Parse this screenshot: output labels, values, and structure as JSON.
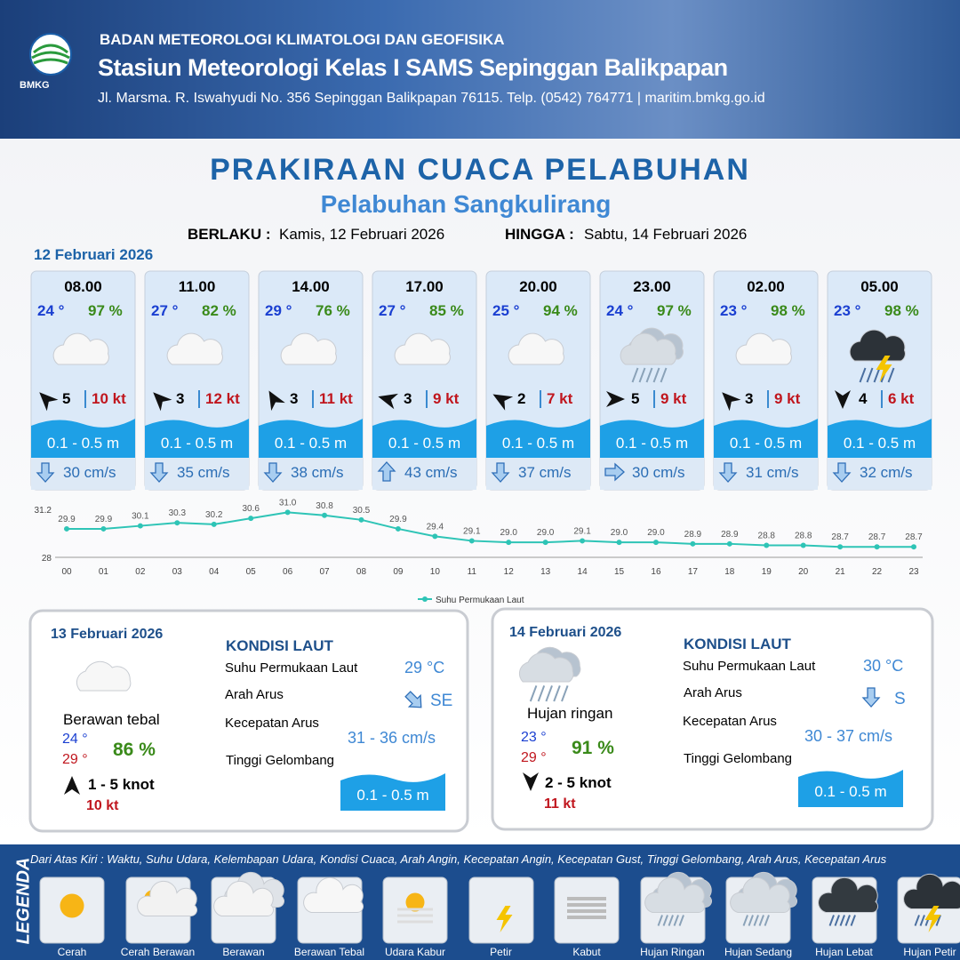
{
  "header": {
    "org": "BADAN METEOROLOGI KLIMATOLOGI DAN GEOFISIKA",
    "station": "Stasiun Meteorologi Kelas I SAMS Sepinggan Balikpapan",
    "address": "Jl. Marsma. R. Iswahyudi No. 356 Sepinggan Balikpapan 76115. Telp. (0542) 764771 | maritim.bmkg.go.id",
    "logo": "BMKG"
  },
  "title": "PRAKIRAAN CUACA PELABUHAN",
  "subtitle": "Pelabuhan Sangkulirang",
  "validity": {
    "from_label": "BERLAKU :",
    "from": "Kamis, 12 Februari 2026",
    "to_label": "HINGGA :",
    "to": "Sabtu, 14 Februari 2026"
  },
  "day1": {
    "date": "12 Februari 2026",
    "forecasts": [
      {
        "time": "08.00",
        "temp": "24 °",
        "humidity": "97 %",
        "condition": 3,
        "wind_dir_deg": 315,
        "wind": "5",
        "gust": "10 kt",
        "wave": "0.1 - 0.5 m",
        "current_dir_deg": 180,
        "current": "30 cm/s"
      },
      {
        "time": "11.00",
        "temp": "27 °",
        "humidity": "82 %",
        "condition": 3,
        "wind_dir_deg": 315,
        "wind": "3",
        "gust": "12 kt",
        "wave": "0.1 - 0.5 m",
        "current_dir_deg": 180,
        "current": "35 cm/s"
      },
      {
        "time": "14.00",
        "temp": "29 °",
        "humidity": "76 %",
        "condition": 3,
        "wind_dir_deg": 330,
        "wind": "3",
        "gust": "11 kt",
        "wave": "0.1 - 0.5 m",
        "current_dir_deg": 180,
        "current": "38 cm/s"
      },
      {
        "time": "17.00",
        "temp": "27 °",
        "humidity": "85 %",
        "condition": 3,
        "wind_dir_deg": 285,
        "wind": "3",
        "gust": "9 kt",
        "wave": "0.1 - 0.5 m",
        "current_dir_deg": 0,
        "current": "43 cm/s"
      },
      {
        "time": "20.00",
        "temp": "25 °",
        "humidity": "94 %",
        "condition": 3,
        "wind_dir_deg": 300,
        "wind": "2",
        "gust": "7 kt",
        "wave": "0.1 - 0.5 m",
        "current_dir_deg": 180,
        "current": "37 cm/s"
      },
      {
        "time": "23.00",
        "temp": "24 °",
        "humidity": "97 %",
        "condition": 7,
        "wind_dir_deg": 90,
        "wind": "5",
        "gust": "9 kt",
        "wave": "0.1 - 0.5 m",
        "current_dir_deg": 90,
        "current": "30 cm/s"
      },
      {
        "time": "02.00",
        "temp": "23 °",
        "humidity": "98 %",
        "condition": 3,
        "wind_dir_deg": 315,
        "wind": "3",
        "gust": "9 kt",
        "wave": "0.1 - 0.5 m",
        "current_dir_deg": 180,
        "current": "31 cm/s"
      },
      {
        "time": "05.00",
        "temp": "23 °",
        "humidity": "98 %",
        "condition": 10,
        "wind_dir_deg": 180,
        "wind": "4",
        "gust": "6 kt",
        "wave": "0.1 - 0.5 m",
        "current_dir_deg": 180,
        "current": "32 cm/s"
      }
    ]
  },
  "chart_data": {
    "type": "line",
    "categories": [
      "00",
      "01",
      "02",
      "03",
      "04",
      "05",
      "06",
      "07",
      "08",
      "09",
      "10",
      "11",
      "12",
      "13",
      "14",
      "15",
      "16",
      "17",
      "18",
      "19",
      "20",
      "21",
      "22",
      "23"
    ],
    "series": [
      {
        "name": "Suhu Permukaan Laut",
        "color": "#2ec4b6",
        "values": [
          29.9,
          29.9,
          30.1,
          30.3,
          30.2,
          30.6,
          31.0,
          30.8,
          30.5,
          29.9,
          29.4,
          29.1,
          29.0,
          29.0,
          29.1,
          29.0,
          29.0,
          28.9,
          28.9,
          28.8,
          28.8,
          28.7,
          28.7,
          28.7
        ],
        "value_labels": [
          "29.9",
          "29.9",
          "30.1",
          "30.3",
          "30.2",
          "30.6",
          "31.0",
          "30.8",
          "30.5",
          "29.9",
          "29.4",
          "29.1",
          "29.0",
          "29.0",
          "29.1",
          "29.0",
          "29.0",
          "28.9",
          "28.9",
          "28.8",
          "28.8",
          "28.7",
          "28.7",
          "28.7"
        ]
      }
    ],
    "ylim": [
      28,
      31.2
    ],
    "yticks": [
      28,
      31.2
    ],
    "legend": "bottom"
  },
  "days": [
    {
      "date": "13 Februari 2026",
      "condition": 3,
      "condition_text": "Berawan tebal",
      "temp_min": "24 °",
      "temp_max": "29 °",
      "humidity": "86 %",
      "wind_dir_deg": 0,
      "wind": "1  - 5 knot",
      "gust": "10 kt",
      "sea_title": "KONDISI LAUT",
      "sst_label": "Suhu Permukaan Laut",
      "sst": "29 °C",
      "dir_label": "Arah Arus",
      "current_dir_deg": 135,
      "current_dir": "SE",
      "speed_label": "Kecepatan Arus",
      "speed": "31  - 36 cm/s",
      "wave_label": "Tinggi Gelombang",
      "wave": "0.1 - 0.5 m"
    },
    {
      "date": "14 Februari 2026",
      "condition": 7,
      "condition_text": "Hujan ringan",
      "temp_min": "23 °",
      "temp_max": "29 °",
      "humidity": "91 %",
      "wind_dir_deg": 180,
      "wind": "2  - 5 knot",
      "gust": "11 kt",
      "sea_title": "KONDISI LAUT",
      "sst_label": "Suhu Permukaan Laut",
      "sst": "30 °C",
      "dir_label": "Arah Arus",
      "current_dir_deg": 180,
      "current_dir": "S",
      "speed_label": "Kecepatan Arus",
      "speed": "30  - 37 cm/s",
      "wave_label": "Tinggi Gelombang",
      "wave": "0.1 - 0.5 m"
    }
  ],
  "legend": {
    "title": "LEGENDA",
    "description": "Dari Atas Kiri : Waktu, Suhu Udara, Kelembapan Udara, Kondisi Cuaca, Arah Angin, Kecepatan Angin, Kecepatan Gust, Tinggi Gelombang, Arah Arus, Kecepatan Arus",
    "items": [
      "Cerah",
      "Cerah Berawan",
      "Berawan",
      "Berawan Tebal",
      "Udara Kabur",
      "Petir",
      "Kabut",
      "Hujan Ringan",
      "Hujan Sedang",
      "Hujan Lebat",
      "Hujan Petir"
    ]
  }
}
